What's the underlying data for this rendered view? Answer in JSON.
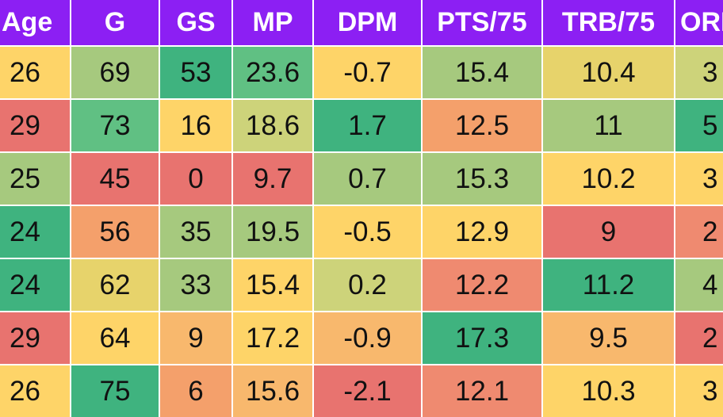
{
  "colors": {
    "header_bg": "#8c1ff3",
    "header_text": "#ffffff",
    "green_dark": "#3fb37f",
    "green": "#60c083",
    "green_light": "#a6c97e",
    "olive": "#cdd37a",
    "yellow_green": "#e7d36b",
    "yellow": "#fed468",
    "orange_light": "#f8b86d",
    "orange": "#f4a06b",
    "salmon": "#ef8a70",
    "red": "#e8736f"
  },
  "table": {
    "headers": [
      "Age",
      "G",
      "GS",
      "MP",
      "DPM",
      "PTS/75",
      "TRB/75",
      "ORB"
    ],
    "rows": [
      [
        "26",
        "69",
        "53",
        "23.6",
        "-0.7",
        "15.4",
        "10.4",
        "3"
      ],
      [
        "29",
        "73",
        "16",
        "18.6",
        "1.7",
        "12.5",
        "11",
        "5"
      ],
      [
        "25",
        "45",
        "0",
        "9.7",
        "0.7",
        "15.3",
        "10.2",
        "3"
      ],
      [
        "24",
        "56",
        "35",
        "19.5",
        "-0.5",
        "12.9",
        "9",
        "2"
      ],
      [
        "24",
        "62",
        "33",
        "15.4",
        "0.2",
        "12.2",
        "11.2",
        "4"
      ],
      [
        "29",
        "64",
        "9",
        "17.2",
        "-0.9",
        "17.3",
        "9.5",
        "2"
      ],
      [
        "26",
        "75",
        "6",
        "15.6",
        "-2.1",
        "12.1",
        "10.3",
        "3"
      ]
    ],
    "cell_colors": [
      [
        "#fed468",
        "#a6c97e",
        "#3fb37f",
        "#60c083",
        "#fed468",
        "#a6c97e",
        "#e7d36b",
        "#cdd37a"
      ],
      [
        "#e8736f",
        "#60c083",
        "#fed468",
        "#cdd37a",
        "#3fb37f",
        "#f4a06b",
        "#a6c97e",
        "#3fb37f"
      ],
      [
        "#a6c97e",
        "#e8736f",
        "#e8736f",
        "#e8736f",
        "#a6c97e",
        "#a6c97e",
        "#fed468",
        "#fed468"
      ],
      [
        "#3fb37f",
        "#f4a06b",
        "#a6c97e",
        "#a6c97e",
        "#fed468",
        "#fed468",
        "#e8736f",
        "#ef8a70"
      ],
      [
        "#3fb37f",
        "#e7d36b",
        "#a6c97e",
        "#fed468",
        "#cdd37a",
        "#ef8a70",
        "#3fb37f",
        "#a6c97e"
      ],
      [
        "#e8736f",
        "#fed468",
        "#f8b86d",
        "#fed468",
        "#f8b86d",
        "#3fb37f",
        "#f8b86d",
        "#e8736f"
      ],
      [
        "#fed468",
        "#3fb37f",
        "#f4a06b",
        "#f8b86d",
        "#e8736f",
        "#ef8a70",
        "#fed468",
        "#fed468"
      ]
    ]
  }
}
